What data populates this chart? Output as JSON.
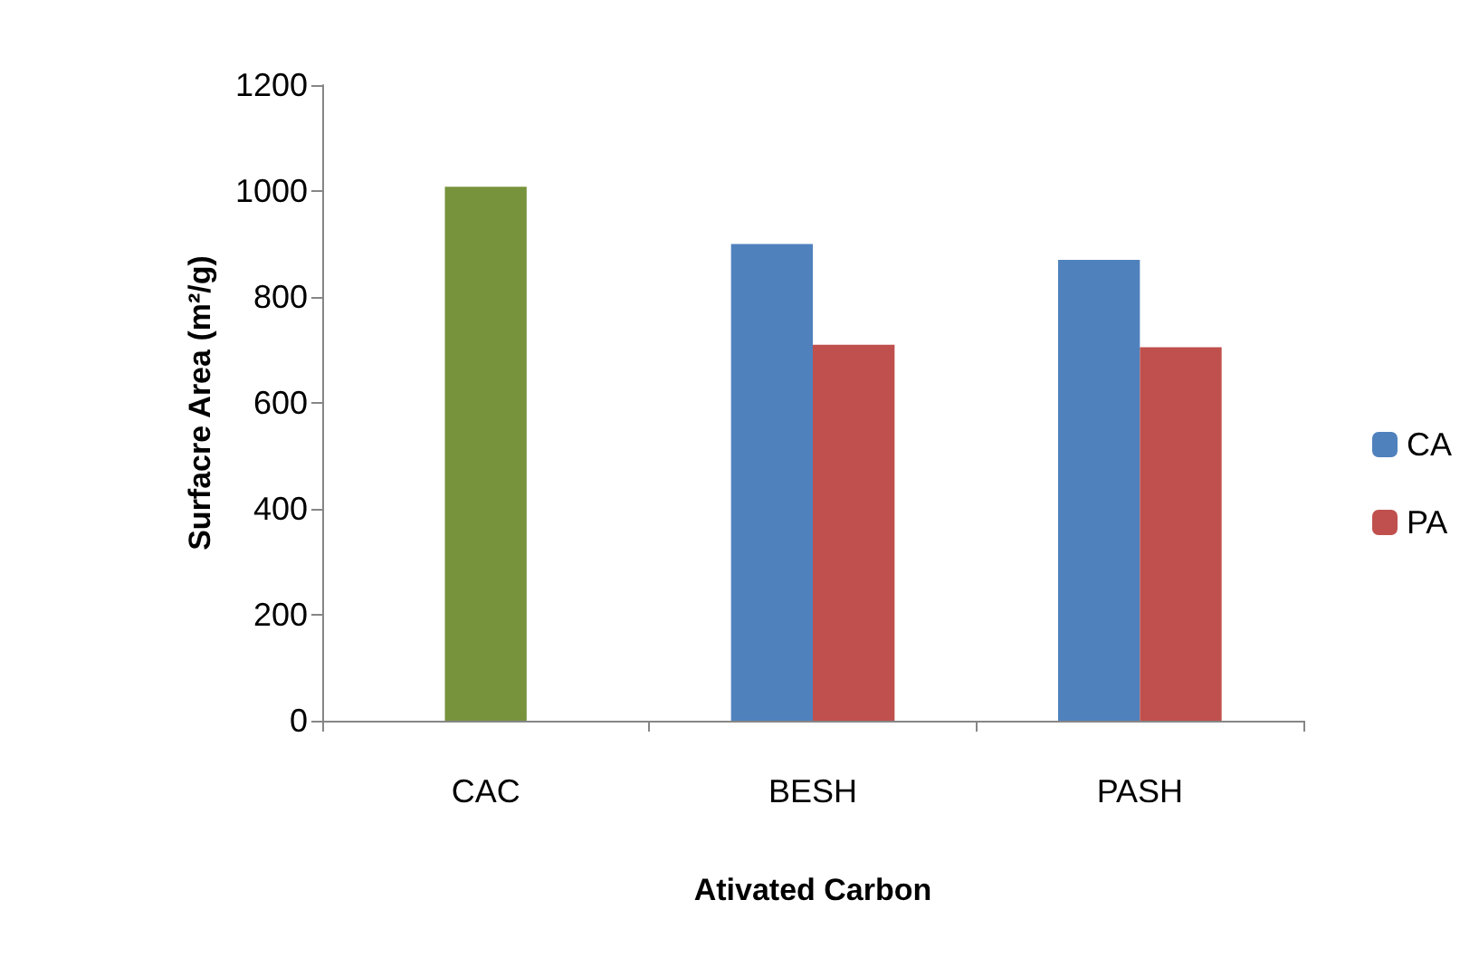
{
  "chart_data": {
    "type": "bar",
    "xlabel": "Ativated Carbon",
    "ylabel": "Surfacre Area (m²/g)",
    "categories": [
      "CAC",
      "BESH",
      "PASH"
    ],
    "series": [
      {
        "color": "#77933c",
        "values": [
          1008,
          null,
          null
        ]
      },
      {
        "name": "CA",
        "color": "#4f81bd",
        "values": [
          null,
          900,
          870
        ]
      },
      {
        "name": "PA",
        "color": "#c0504d",
        "values": [
          null,
          710,
          705
        ]
      }
    ],
    "ylim": [
      0,
      1200
    ],
    "yticks": [
      0,
      200,
      400,
      600,
      800,
      1000,
      1200
    ],
    "grid": false,
    "legend": "right"
  }
}
